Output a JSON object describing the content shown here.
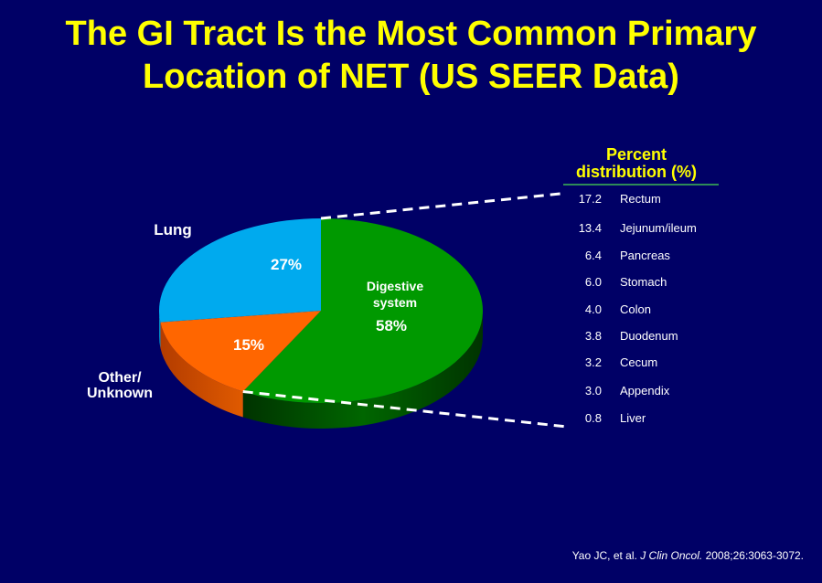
{
  "title_line1": "The GI Tract Is the Most Common Primary",
  "title_line2": "Location of NET (US SEER Data)",
  "chart_data": [
    {
      "type": "pie",
      "slices": [
        {
          "name": "Digestive system",
          "value": 58,
          "label": "58%",
          "color": "#009900"
        },
        {
          "name": "Other/ Unknown",
          "value": 15,
          "label": "15%",
          "color": "#ff6600"
        },
        {
          "name": "Lung",
          "value": 27,
          "label": "27%",
          "color": "#00aaee"
        }
      ],
      "outside_labels": {
        "lung": "Lung",
        "other_line1": "Other/",
        "other_line2": "Unknown"
      },
      "inside_labels": {
        "digestive_line1": "Digestive",
        "digestive_line2": "system"
      }
    },
    {
      "type": "table",
      "header_line1": "Percent",
      "header_line2": "distribution (%)",
      "rows": [
        {
          "value": "17.2",
          "site": "Rectum"
        },
        {
          "value": "13.4",
          "site": "Jejunum/ileum"
        },
        {
          "value": "6.4",
          "site": "Pancreas"
        },
        {
          "value": "6.0",
          "site": "Stomach"
        },
        {
          "value": "4.0",
          "site": "Colon"
        },
        {
          "value": "3.8",
          "site": "Duodenum"
        },
        {
          "value": "3.2",
          "site": "Cecum"
        },
        {
          "value": "3.0",
          "site": "Appendix"
        },
        {
          "value": "0.8",
          "site": "Liver"
        }
      ]
    }
  ],
  "citation": {
    "authors": "Yao JC, et al.",
    "journal": "J Clin Oncol.",
    "details": "2008;26:3063-3072."
  }
}
